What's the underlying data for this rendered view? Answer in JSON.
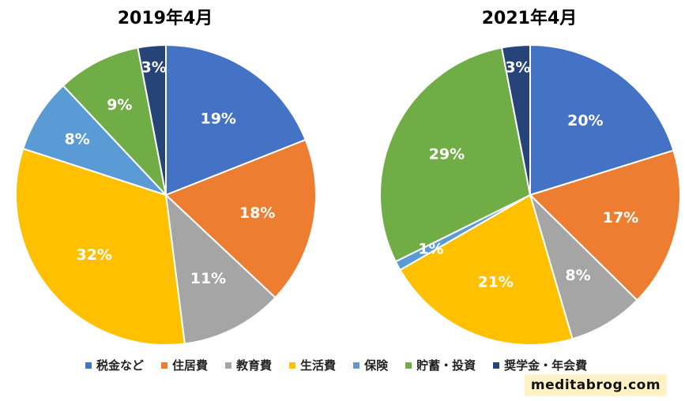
{
  "chart_data": [
    {
      "type": "pie",
      "title": "2019年4月",
      "slices": [
        {
          "label": "税金など",
          "value": 19,
          "text": "19%"
        },
        {
          "label": "住居費",
          "value": 18,
          "text": "18%"
        },
        {
          "label": "教育費",
          "value": 11,
          "text": "11%"
        },
        {
          "label": "生活費",
          "value": 32,
          "text": "32%"
        },
        {
          "label": "保険",
          "value": 8,
          "text": "8%"
        },
        {
          "label": "貯蓄・投資",
          "value": 9,
          "text": "9%"
        },
        {
          "label": "奨学金・年会費",
          "value": 3,
          "text": "3%"
        }
      ]
    },
    {
      "type": "pie",
      "title": "2021年4月",
      "slices": [
        {
          "label": "税金など",
          "value": 20,
          "text": "20%"
        },
        {
          "label": "住居費",
          "value": 17,
          "text": "17%"
        },
        {
          "label": "教育費",
          "value": 8,
          "text": "8%"
        },
        {
          "label": "生活費",
          "value": 21,
          "text": "21%"
        },
        {
          "label": "保険",
          "value": 1,
          "text": "1%"
        },
        {
          "label": "貯蓄・投資",
          "value": 29,
          "text": "29%"
        },
        {
          "label": "奨学金・年会費",
          "value": 3,
          "text": "3%"
        }
      ]
    }
  ],
  "legend": [
    {
      "label": "税金など",
      "color": "#4472c4"
    },
    {
      "label": "住居費",
      "color": "#ed7d31"
    },
    {
      "label": "教育費",
      "color": "#a5a5a5"
    },
    {
      "label": "生活費",
      "color": "#ffc000"
    },
    {
      "label": "保険",
      "color": "#5b9bd5"
    },
    {
      "label": "貯蓄・投資",
      "color": "#70ad47"
    },
    {
      "label": "奨学金・年会費",
      "color": "#264478"
    }
  ],
  "watermark": "meditabrog.com"
}
